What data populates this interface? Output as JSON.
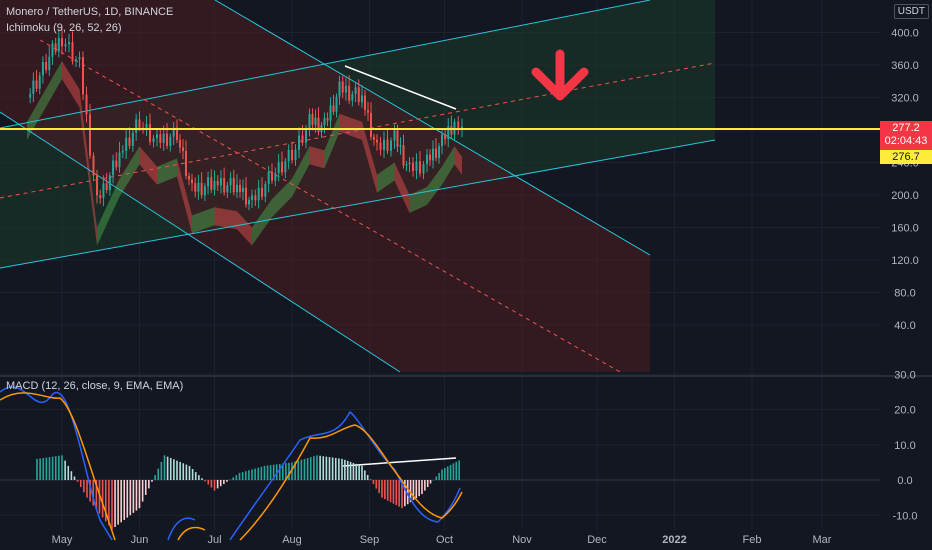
{
  "header": {
    "symbol_line": "Monero / TetherUS, 1D, BINANCE",
    "indicator": "Ichimoku (9, 26, 52, 26)",
    "macd_label": "MACD (12, 26, close, 9, EMA, EMA)",
    "currency": "USDT"
  },
  "price_labels": {
    "last_price": "277.2",
    "countdown": "02:04:43",
    "level": "276.7"
  },
  "colors": {
    "background": "#131722",
    "bull_cloud": "#4caf50",
    "bear_cloud": "#ef5350",
    "support_line": "#ffeb3b",
    "channel_line": "#26c6da",
    "arrow": "#f23645",
    "macd_line": "#2962ff",
    "signal_line": "#ff9800"
  },
  "chart_data": [
    {
      "type": "candlestick",
      "title": "Monero / TetherUS, 1D, BINANCE",
      "y_ticks": [
        "400.0",
        "360.0",
        "320.0",
        "280.0",
        "240.0",
        "200.0",
        "160.0",
        "120.0",
        "80.0",
        "40.0"
      ],
      "ylim": [
        30,
        405
      ],
      "x_ticks": [
        "May",
        "Jun",
        "Jul",
        "Aug",
        "Sep",
        "Oct",
        "Nov",
        "Dec",
        "2022",
        "Feb",
        "Mar"
      ],
      "support_level": 276.7,
      "last_price": 277.2,
      "close_series": [
        {
          "date": "2021-04-21",
          "close": 320
        },
        {
          "date": "2021-05-05",
          "close": 395
        },
        {
          "date": "2021-05-12",
          "close": 360
        },
        {
          "date": "2021-05-19",
          "close": 190
        },
        {
          "date": "2021-05-28",
          "close": 250
        },
        {
          "date": "2021-06-05",
          "close": 290
        },
        {
          "date": "2021-06-12",
          "close": 265
        },
        {
          "date": "2021-06-20",
          "close": 275
        },
        {
          "date": "2021-06-26",
          "close": 205
        },
        {
          "date": "2021-07-05",
          "close": 215
        },
        {
          "date": "2021-07-14",
          "close": 210
        },
        {
          "date": "2021-07-20",
          "close": 190
        },
        {
          "date": "2021-07-28",
          "close": 225
        },
        {
          "date": "2021-08-05",
          "close": 250
        },
        {
          "date": "2021-08-12",
          "close": 290
        },
        {
          "date": "2021-08-18",
          "close": 285
        },
        {
          "date": "2021-08-24",
          "close": 330
        },
        {
          "date": "2021-09-02",
          "close": 320
        },
        {
          "date": "2021-09-08",
          "close": 255
        },
        {
          "date": "2021-09-15",
          "close": 270
        },
        {
          "date": "2021-09-21",
          "close": 230
        },
        {
          "date": "2021-09-28",
          "close": 240
        },
        {
          "date": "2021-10-04",
          "close": 265
        },
        {
          "date": "2021-10-09",
          "close": 290
        },
        {
          "date": "2021-10-12",
          "close": 277
        }
      ]
    },
    {
      "type": "bar",
      "title": "MACD (12, 26, close, 9, EMA, EMA)",
      "y_ticks": [
        "30.0",
        "20.0",
        "10.0",
        "0.0",
        "-10.0"
      ],
      "ylim": [
        -13,
        30
      ],
      "histogram": [
        {
          "date": "2021-04-25",
          "value": 6
        },
        {
          "date": "2021-05-05",
          "value": 7
        },
        {
          "date": "2021-05-15",
          "value": -5
        },
        {
          "date": "2021-05-25",
          "value": -14
        },
        {
          "date": "2021-06-05",
          "value": -8
        },
        {
          "date": "2021-06-15",
          "value": 7
        },
        {
          "date": "2021-06-25",
          "value": 4
        },
        {
          "date": "2021-07-05",
          "value": -3
        },
        {
          "date": "2021-07-15",
          "value": 2
        },
        {
          "date": "2021-07-25",
          "value": 4
        },
        {
          "date": "2021-08-05",
          "value": 5
        },
        {
          "date": "2021-08-15",
          "value": 7
        },
        {
          "date": "2021-08-25",
          "value": 6
        },
        {
          "date": "2021-09-02",
          "value": 4
        },
        {
          "date": "2021-09-10",
          "value": -5
        },
        {
          "date": "2021-09-18",
          "value": -8
        },
        {
          "date": "2021-09-26",
          "value": -4
        },
        {
          "date": "2021-10-04",
          "value": 3
        },
        {
          "date": "2021-10-12",
          "value": 6
        }
      ]
    }
  ]
}
